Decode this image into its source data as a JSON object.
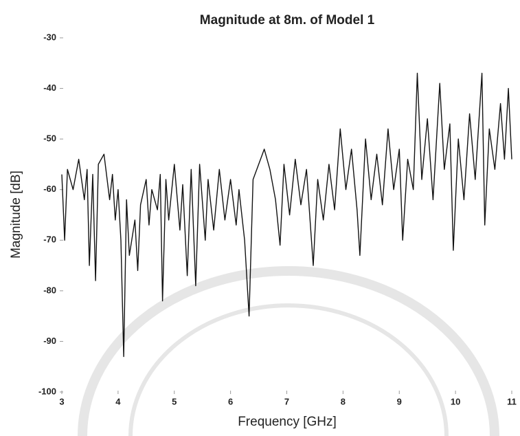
{
  "chart_data": {
    "type": "line",
    "title": "Magnitude at 8m. of Model 1",
    "x_label": "Frequency [GHz]",
    "y_label": "Magnitude [dB]",
    "xlim": [
      3,
      11
    ],
    "xticks": [
      3,
      4,
      5,
      6,
      7,
      8,
      9,
      10,
      11
    ],
    "ylim": [
      -100,
      -30
    ],
    "yticks": [
      -100,
      -90,
      -80,
      -70,
      -60,
      -50,
      -40,
      -30
    ],
    "series": [
      {
        "color": "#111111",
        "x": [
          3.0,
          3.05,
          3.1,
          3.2,
          3.3,
          3.4,
          3.45,
          3.49,
          3.55,
          3.6,
          3.65,
          3.75,
          3.85,
          3.9,
          3.95,
          4.0,
          4.05,
          4.1,
          4.15,
          4.2,
          4.3,
          4.35,
          4.4,
          4.5,
          4.55,
          4.6,
          4.7,
          4.75,
          4.79,
          4.85,
          4.9,
          5.0,
          5.1,
          5.15,
          5.23,
          5.3,
          5.38,
          5.45,
          5.55,
          5.6,
          5.7,
          5.8,
          5.9,
          6.0,
          6.1,
          6.15,
          6.25,
          6.33,
          6.4,
          6.5,
          6.6,
          6.7,
          6.8,
          6.88,
          6.95,
          7.05,
          7.15,
          7.25,
          7.35,
          7.47,
          7.55,
          7.65,
          7.75,
          7.85,
          7.95,
          8.05,
          8.15,
          8.25,
          8.3,
          8.4,
          8.5,
          8.6,
          8.7,
          8.8,
          8.9,
          9.0,
          9.06,
          9.15,
          9.25,
          9.32,
          9.4,
          9.5,
          9.6,
          9.72,
          9.8,
          9.9,
          9.96,
          10.05,
          10.15,
          10.25,
          10.35,
          10.47,
          10.52,
          10.6,
          10.7,
          10.8,
          10.87,
          10.94,
          11.0
        ],
        "values": [
          -57,
          -70,
          -56,
          -60,
          -54,
          -62,
          -56,
          -75,
          -57,
          -78,
          -55,
          -53,
          -62,
          -57,
          -66,
          -60,
          -70,
          -93,
          -62,
          -73,
          -66,
          -76,
          -63,
          -58,
          -67,
          -60,
          -64,
          -57,
          -82,
          -58,
          -66,
          -55,
          -68,
          -59,
          -77,
          -56,
          -79,
          -55,
          -70,
          -58,
          -68,
          -56,
          -66,
          -58,
          -67,
          -60,
          -70,
          -85,
          -58,
          -55,
          -52,
          -56,
          -62,
          -71,
          -55,
          -65,
          -54,
          -63,
          -56,
          -75,
          -58,
          -66,
          -55,
          -64,
          -48,
          -60,
          -52,
          -64,
          -73,
          -50,
          -62,
          -53,
          -63,
          -48,
          -60,
          -52,
          -70,
          -54,
          -60,
          -37,
          -58,
          -46,
          -62,
          -39,
          -56,
          -47,
          -72,
          -50,
          -62,
          -45,
          -58,
          -37,
          -67,
          -48,
          -56,
          -43,
          -54,
          -40,
          -54
        ]
      }
    ]
  }
}
